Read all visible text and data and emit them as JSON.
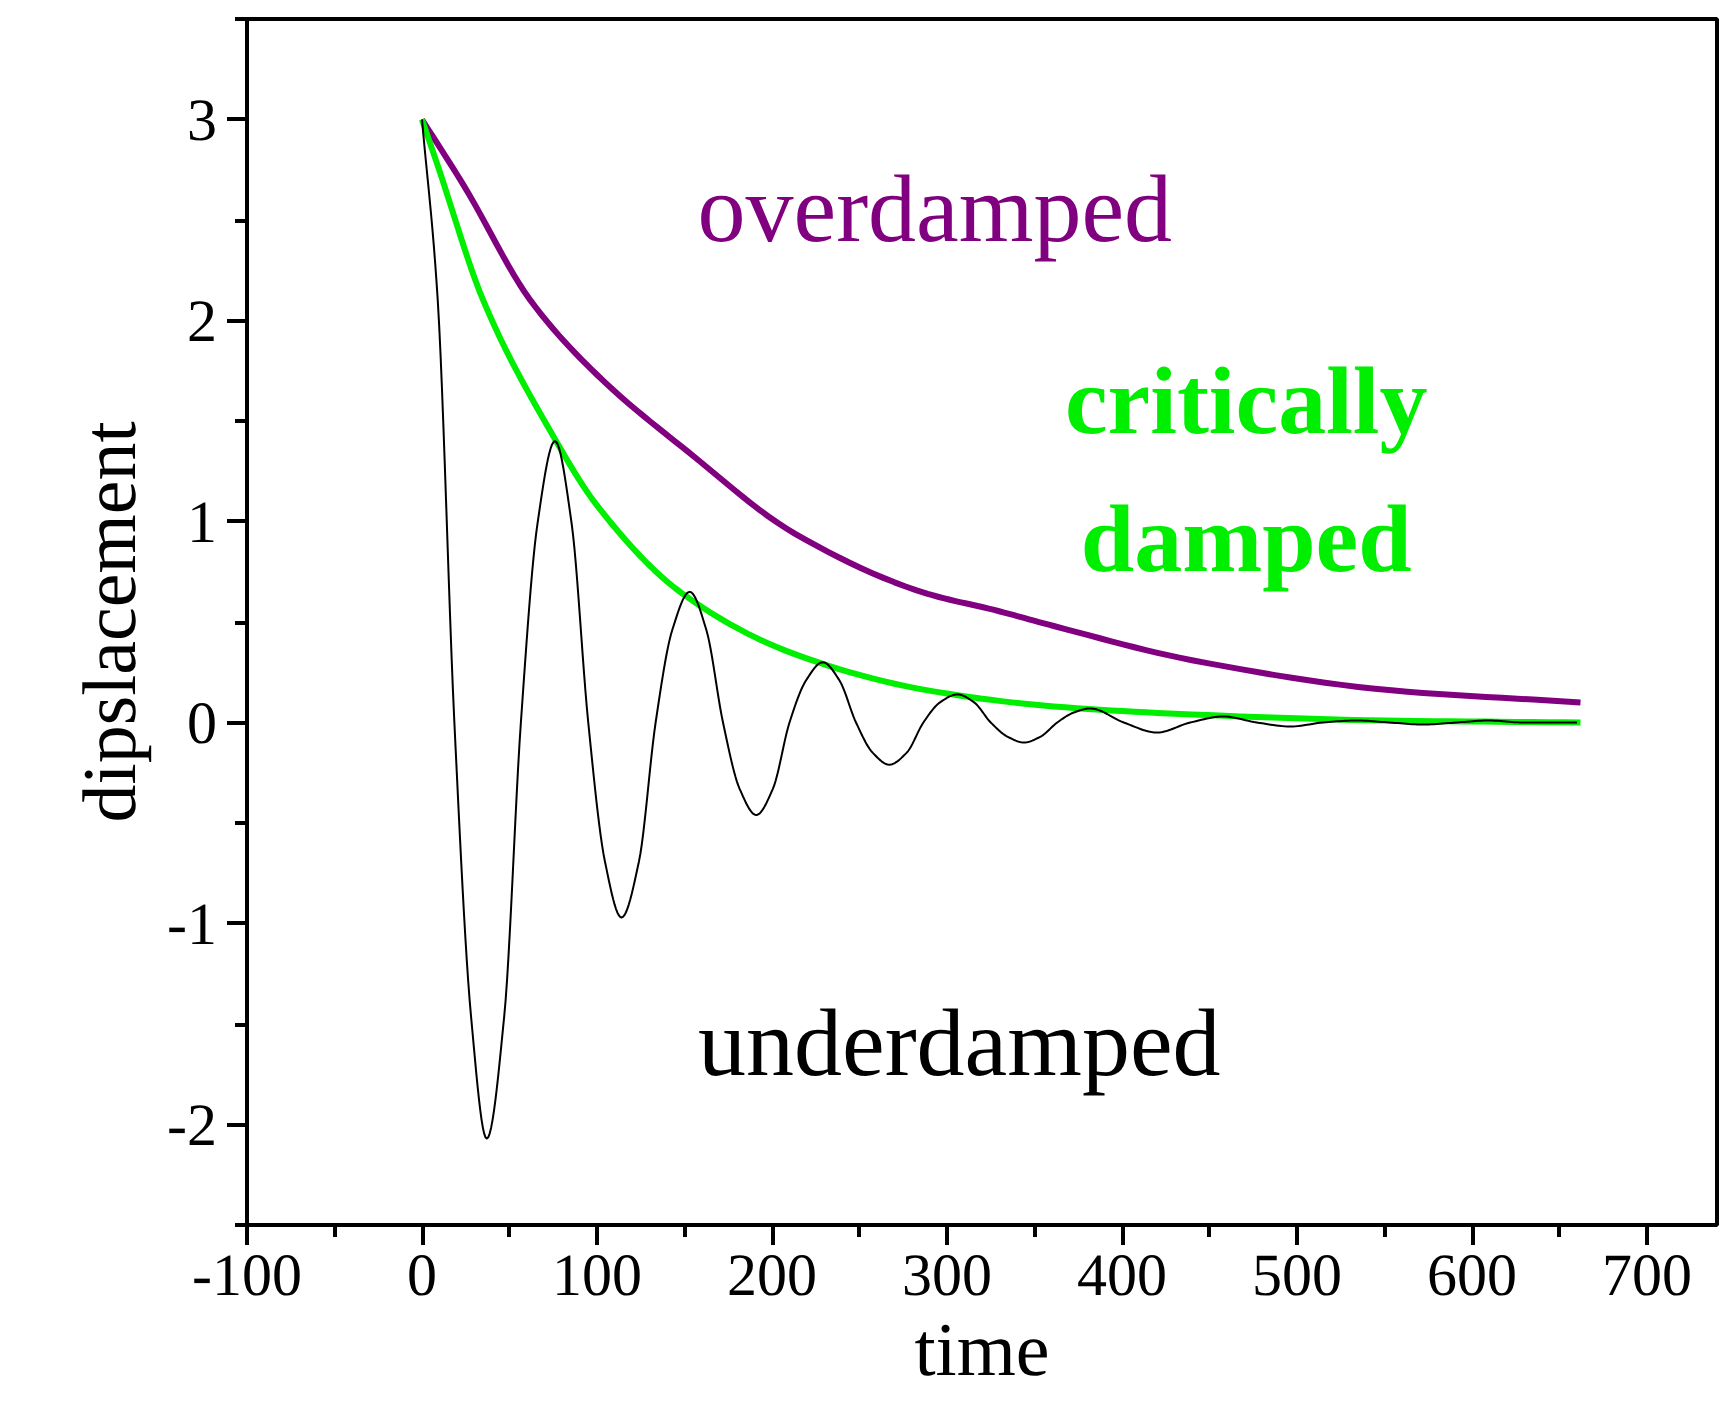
{
  "chart_data": {
    "type": "line",
    "xlabel": "time",
    "ylabel": "dipslacement",
    "xlim": [
      -100,
      740
    ],
    "ylim": [
      -2.5,
      3.5
    ],
    "xticks": [
      -100,
      0,
      100,
      200,
      300,
      400,
      500,
      600,
      700
    ],
    "yticks": [
      -2,
      -1,
      0,
      1,
      2,
      3
    ],
    "line_style": "solid",
    "series": [
      {
        "name": "overdamped",
        "color": "#800080",
        "x": [
          0,
          24,
          62,
          100,
          153,
          213,
          289,
          327,
          361,
          440,
          554,
          662
        ],
        "values": [
          3,
          2.67,
          2.1,
          1.73,
          1.34,
          0.94,
          0.64,
          0.56,
          0.48,
          0.31,
          0.16,
          0.1
        ]
      },
      {
        "name": "critically damped",
        "color": "#00ee00",
        "x": [
          0,
          9,
          35,
          74,
          100,
          149,
          213,
          289,
          361,
          440,
          550,
          662
        ],
        "values": [
          3,
          2.77,
          2.1,
          1.44,
          1.08,
          0.64,
          0.34,
          0.16,
          0.08,
          0.04,
          0.01,
          0
        ]
      },
      {
        "name": "underdamped",
        "color": "#000000",
        "x": [
          0,
          9,
          18.5,
          28,
          37,
          47,
          56.5,
          66,
          76,
          85.5,
          95,
          104.5,
          114,
          124,
          133.5,
          143,
          153,
          162.5,
          172,
          181.5,
          191,
          200.5,
          210,
          219.5,
          229,
          238.5,
          248,
          257.5,
          267,
          277,
          286.5,
          296,
          306,
          315.5,
          325,
          334.5,
          344,
          353.5,
          363,
          372.5,
          382,
          401,
          420,
          439,
          458,
          477,
          496,
          515,
          534,
          553,
          572,
          591,
          610,
          629,
          648,
          660
        ],
        "values": [
          3,
          2.1,
          0,
          -1.46,
          -2.07,
          -1.46,
          0,
          0.99,
          1.4,
          0.99,
          0,
          -0.69,
          -0.97,
          -0.69,
          0,
          0.46,
          0.65,
          0.46,
          0,
          -0.33,
          -0.46,
          -0.33,
          0,
          0.21,
          0.3,
          0.21,
          0,
          -0.15,
          -0.21,
          -0.15,
          0,
          0.1,
          0.14,
          0.1,
          0,
          -0.07,
          -0.1,
          -0.07,
          0,
          0.05,
          0.07,
          0,
          -0.05,
          0,
          0.03,
          0,
          -0.02,
          0,
          0.01,
          0,
          -0.01,
          0,
          0.01,
          0,
          0,
          0
        ]
      }
    ]
  }
}
